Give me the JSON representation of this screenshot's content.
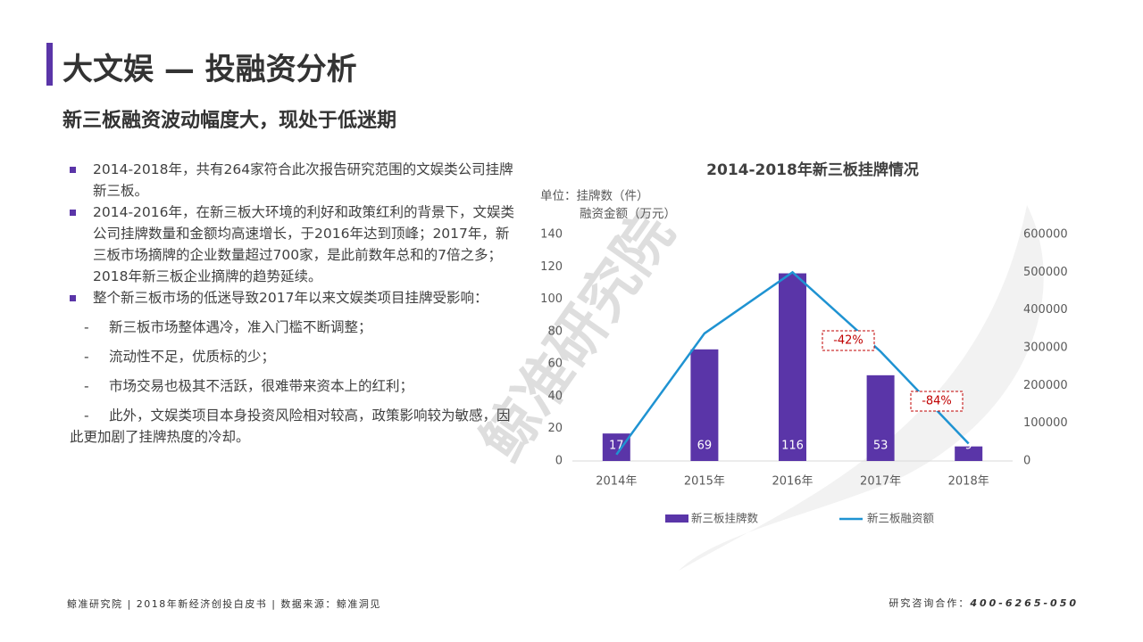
{
  "header": {
    "title": "大文娱 — 投融资分析",
    "subtitle": "新三板融资波动幅度大，现处于低迷期"
  },
  "bullets": [
    "2014-2018年，共有264家符合此次报告研究范围的文娱类公司挂牌新三板。",
    "2014-2016年，在新三板大环境的利好和政策红利的背景下，文娱类公司挂牌数量和金额均高速增长，于2016年达到顶峰；2017年，新三板市场摘牌的企业数量超过700家，是此前数年总和的7倍之多；2018年新三板企业摘牌的趋势延续。",
    "整个新三板市场的低迷导致2017年以来文娱类项目挂牌受影响："
  ],
  "dashes": [
    "新三板市场整体遇冷，准入门槛不断调整；",
    "流动性不足，优质标的少；",
    "市场交易也极其不活跃，很难带来资本上的红利；",
    "此外，文娱类项目本身投资风险相对较高，政策影响较为敏感，因此更加剧了挂牌热度的冷却。"
  ],
  "watermark": "鲸准研究院",
  "footer": {
    "left": "鲸准研究院 | 2018年新经济创投白皮书 | 数据来源：鲸准洞见",
    "right_label": "研究咨询合作：",
    "right_phone": "400-6265-050"
  },
  "chart_data": {
    "type": "bar",
    "title": "2014-2018年新三板挂牌情况",
    "unit_labels": [
      "单位：挂牌数（件）",
      "融资金额（万元）"
    ],
    "categories": [
      "2014年",
      "2015年",
      "2016年",
      "2017年",
      "2018年"
    ],
    "series": [
      {
        "name": "新三板挂牌数",
        "color": "#5a35a8",
        "values": [
          17,
          69,
          116,
          53,
          9
        ]
      },
      {
        "name": "新三板融资额",
        "color": "#1f93d2",
        "type": "line",
        "axis": "y2",
        "values": [
          17000,
          338000,
          500000,
          290000,
          46000
        ]
      }
    ],
    "annotations": [
      "-42%",
      "-84%"
    ],
    "ylim": [
      0,
      140
    ],
    "yticks": [
      0,
      20,
      40,
      60,
      80,
      100,
      120,
      140
    ],
    "y2lim": [
      0,
      600000
    ],
    "y2ticks": [
      0,
      100000,
      200000,
      300000,
      400000,
      500000,
      600000
    ],
    "grid": false
  }
}
